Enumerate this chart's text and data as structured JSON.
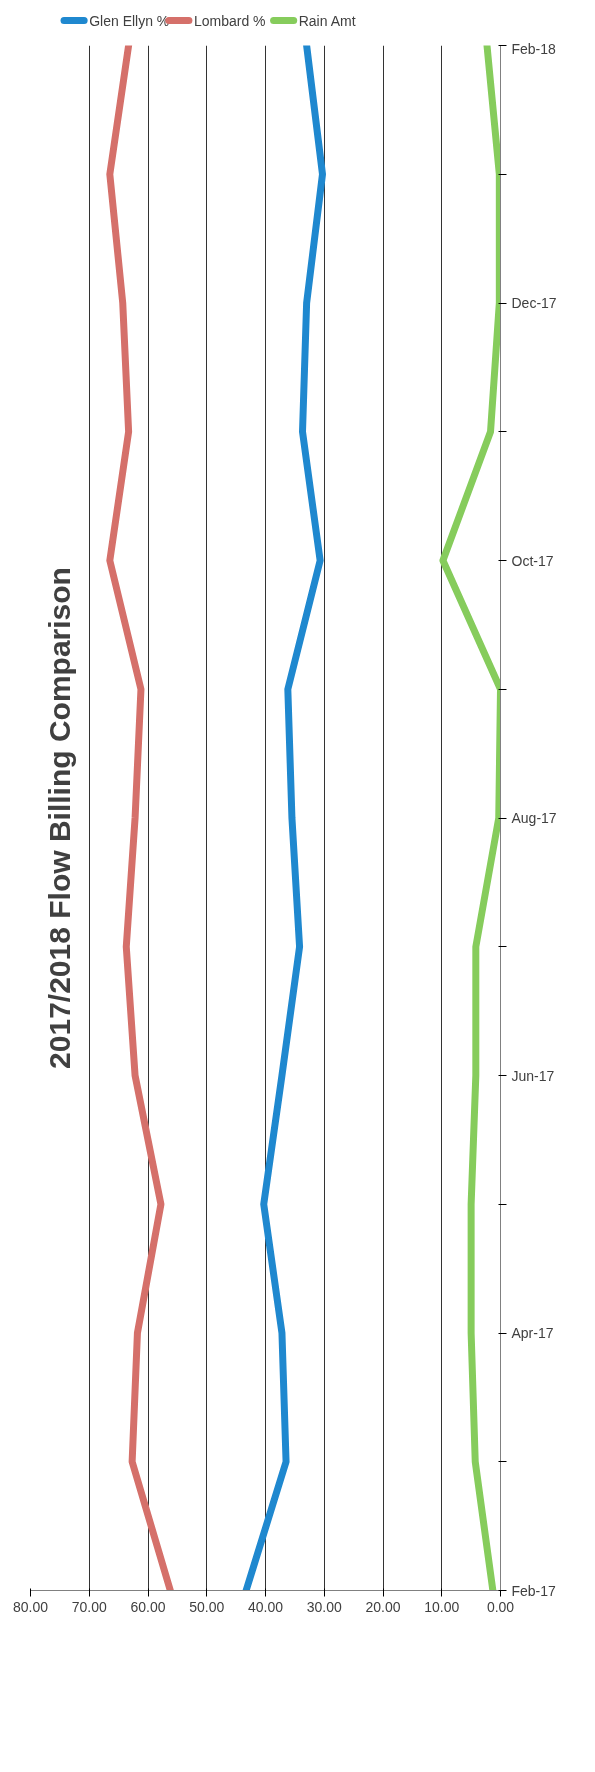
{
  "chart_data": {
    "type": "line",
    "orientation": "horizontal",
    "title": "2017/2018 Flow Billing Comparison",
    "categories": [
      "Feb-18",
      null,
      "Dec-17",
      null,
      "Oct-17",
      null,
      "Aug-17",
      null,
      "Jun-17",
      null,
      "Apr-17",
      null,
      "Feb-17"
    ],
    "series": [
      {
        "name": "Glen Ellyn %",
        "color": "#1f88cf",
        "values": [
          33.0,
          30.3,
          33.0,
          33.7,
          30.7,
          36.2,
          35.5,
          34.2,
          37.2,
          40.3,
          37.2,
          36.5,
          43.3
        ]
      },
      {
        "name": "Lombard %",
        "color": "#d5706a",
        "values": [
          63.3,
          66.5,
          64.3,
          63.3,
          66.5,
          61.2,
          62.2,
          63.7,
          62.2,
          57.8,
          61.8,
          62.7,
          56.2
        ]
      },
      {
        "name": "Rain Amt",
        "color": "#86cc5c",
        "values": [
          2.3,
          0.2,
          0.2,
          1.7,
          9.8,
          0.0,
          0.3,
          4.2,
          4.2,
          5.0,
          5.0,
          4.3,
          1.3
        ]
      }
    ],
    "xlim": [
      80,
      0
    ],
    "xticks": [
      {
        "value": 80,
        "label": "80.00"
      },
      {
        "value": 70,
        "label": "70.00"
      },
      {
        "value": 60,
        "label": "60.00"
      },
      {
        "value": 50,
        "label": "50.00"
      },
      {
        "value": 40,
        "label": "40.00"
      },
      {
        "value": 30,
        "label": "30.00"
      },
      {
        "value": 20,
        "label": "20.00"
      },
      {
        "value": 10,
        "label": "10.00"
      },
      {
        "value": 0,
        "label": "0.00"
      }
    ],
    "grid": "x",
    "legend": "top left",
    "marker": "none",
    "line_style": "solid"
  }
}
